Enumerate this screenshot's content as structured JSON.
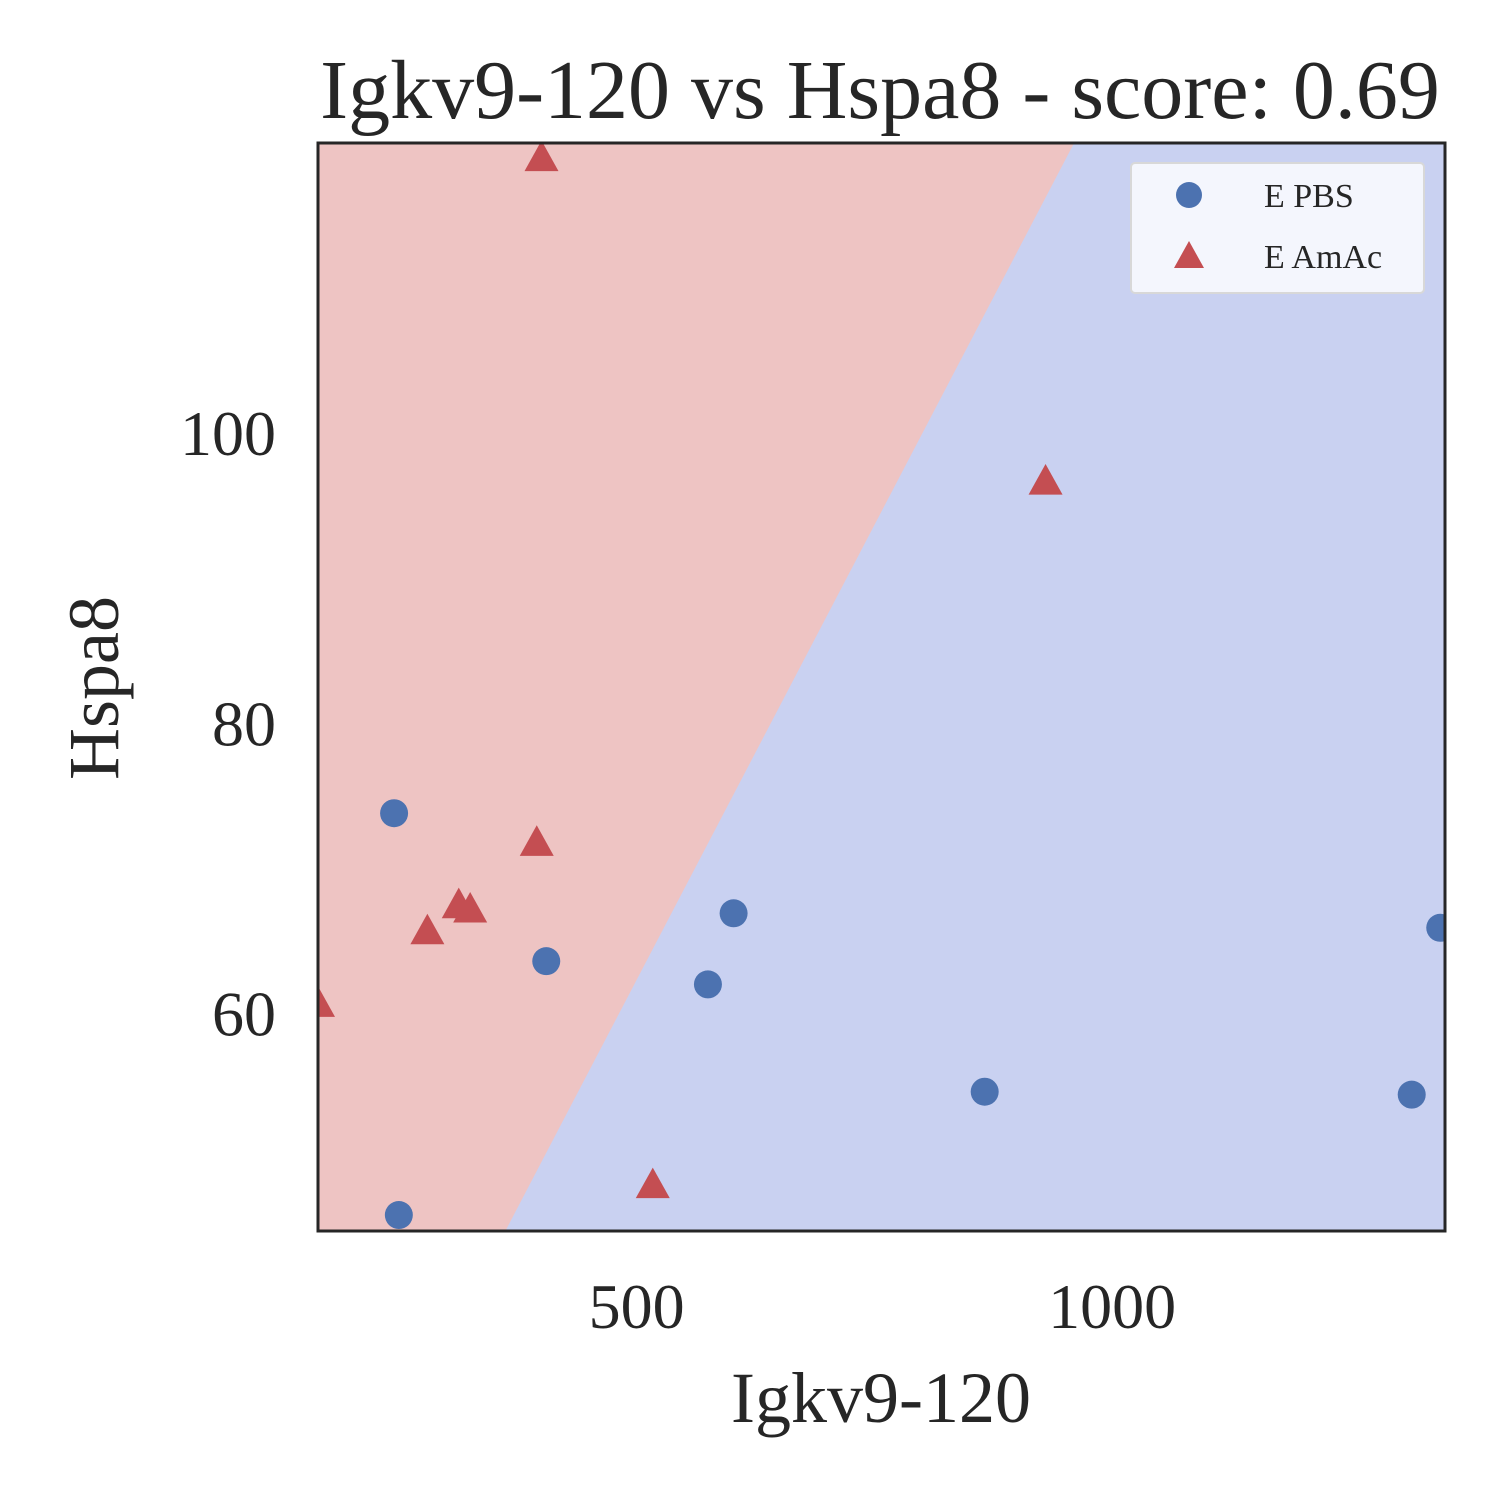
{
  "chart_data": {
    "type": "scatter",
    "title": "Igkv9-120 vs Hspa8 - score: 0.69",
    "xlabel": "Igkv9-120",
    "ylabel": "Hspa8",
    "xlim": [
      165,
      1350
    ],
    "ylim": [
      45,
      120
    ],
    "x_ticks": [
      500,
      1000
    ],
    "y_ticks": [
      60,
      80,
      100
    ],
    "grid": false,
    "legend_position": "top-right",
    "decision_boundary": {
      "points": [
        [
          362,
          45
        ],
        [
          960,
          120
        ]
      ],
      "left_region_class": "E AmAc",
      "right_region_class": "E PBS"
    },
    "colors": {
      "E PBS": "#4c72b0",
      "E AmAc": "#c44e52",
      "region_E PBS": "#c9d1f1",
      "region_E AmAc": "#eec4c3"
    },
    "series": [
      {
        "name": "E PBS",
        "marker": "circle",
        "points": [
          [
            245,
            73.8
          ],
          [
            405,
            63.6
          ],
          [
            575,
            62.0
          ],
          [
            602,
            66.9
          ],
          [
            866,
            54.6
          ],
          [
            1315,
            54.4
          ],
          [
            1345,
            65.9
          ],
          [
            250,
            46.1
          ]
        ]
      },
      {
        "name": "E AmAc",
        "marker": "triangle",
        "points": [
          [
            400,
            119.0
          ],
          [
            930,
            96.7
          ],
          [
            395,
            71.8
          ],
          [
            313,
            67.5
          ],
          [
            325,
            67.2
          ],
          [
            280,
            65.7
          ],
          [
            165,
            60.7
          ],
          [
            517,
            48.2
          ]
        ]
      }
    ]
  }
}
